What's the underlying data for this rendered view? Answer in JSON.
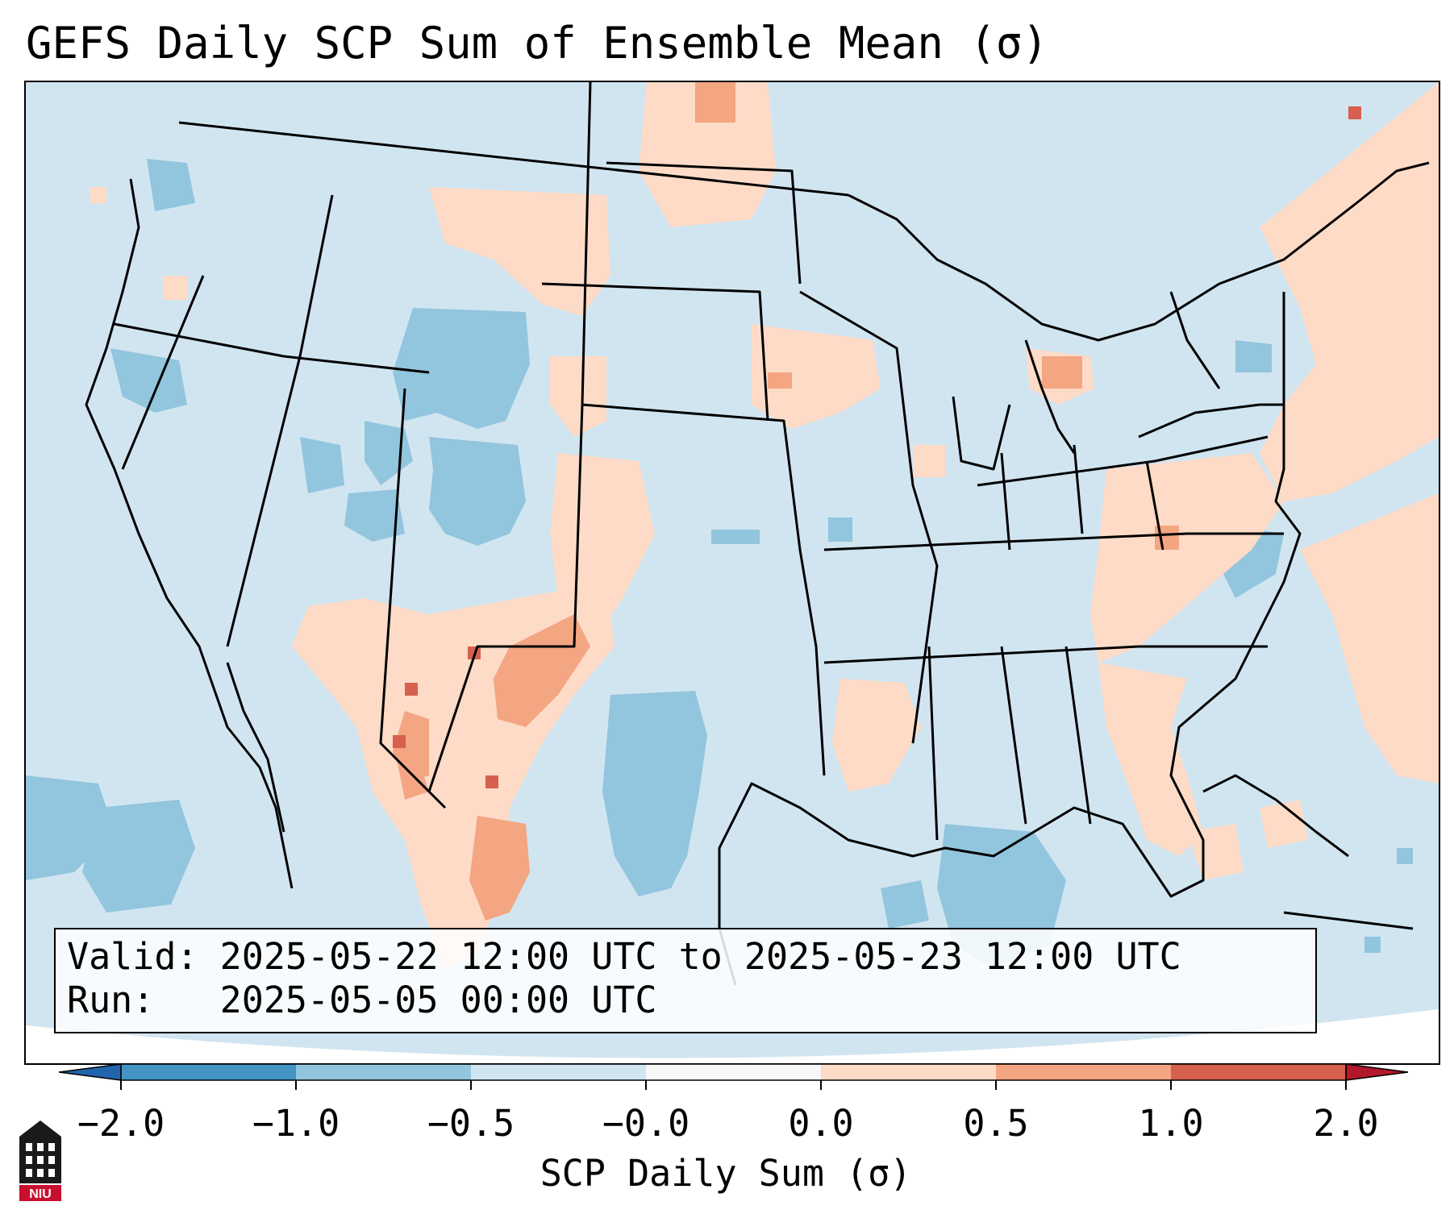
{
  "title": "GEFS Daily SCP Sum of Ensemble Mean (σ)",
  "info_box": {
    "valid_label": "Valid:",
    "valid_value": "2025-05-22 12:00 UTC to 2025-05-23 12:00 UTC",
    "run_label": "Run:",
    "run_value": "2025-05-05 00:00 UTC"
  },
  "colorbar": {
    "label": "SCP Daily Sum (σ)",
    "ticks": [
      "−2.0",
      "−1.0",
      "−0.5",
      "−0.0",
      "0.0",
      "0.5",
      "1.0",
      "2.0"
    ],
    "colors": [
      "#4393c3",
      "#92c5de",
      "#d1e5f0",
      "#f7f7f7",
      "#fddbc7",
      "#f4a582",
      "#d6604d"
    ],
    "under_color": "#2166ac",
    "over_color": "#b2182b",
    "extend": "both"
  },
  "map": {
    "background_color": "#d1e5f0",
    "positive_color": "#fddbc7",
    "strong_positive_color": "#f4a582",
    "max_positive_color": "#d6604d",
    "negative_color": "#92c5de",
    "coastline_color": "#000000"
  },
  "logo": {
    "text": "NIU",
    "icon": "niu-logo-icon"
  }
}
